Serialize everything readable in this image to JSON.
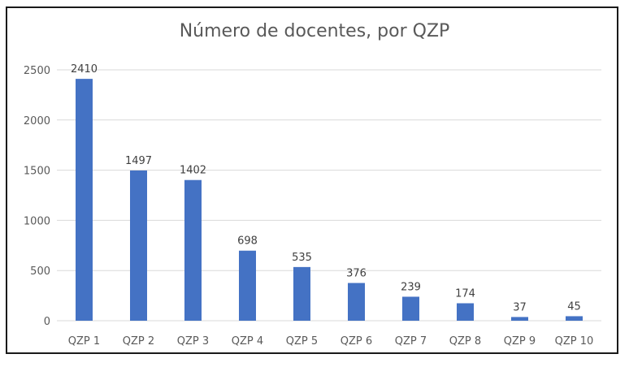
{
  "chart_data": {
    "type": "bar",
    "title": "Número de docentes, por QZP",
    "categories": [
      "QZP 1",
      "QZP 2",
      "QZP 3",
      "QZP 4",
      "QZP 5",
      "QZP 6",
      "QZP 7",
      "QZP 8",
      "QZP 9",
      "QZP 10"
    ],
    "values": [
      2410,
      1497,
      1402,
      698,
      535,
      376,
      239,
      174,
      37,
      45
    ],
    "yticks": [
      0,
      500,
      1000,
      1500,
      2000,
      2500
    ],
    "ylim": [
      0,
      2500
    ],
    "grid": true,
    "legend": "none",
    "bar_color": "#4472C4",
    "grid_color": "#d9d9d9"
  }
}
